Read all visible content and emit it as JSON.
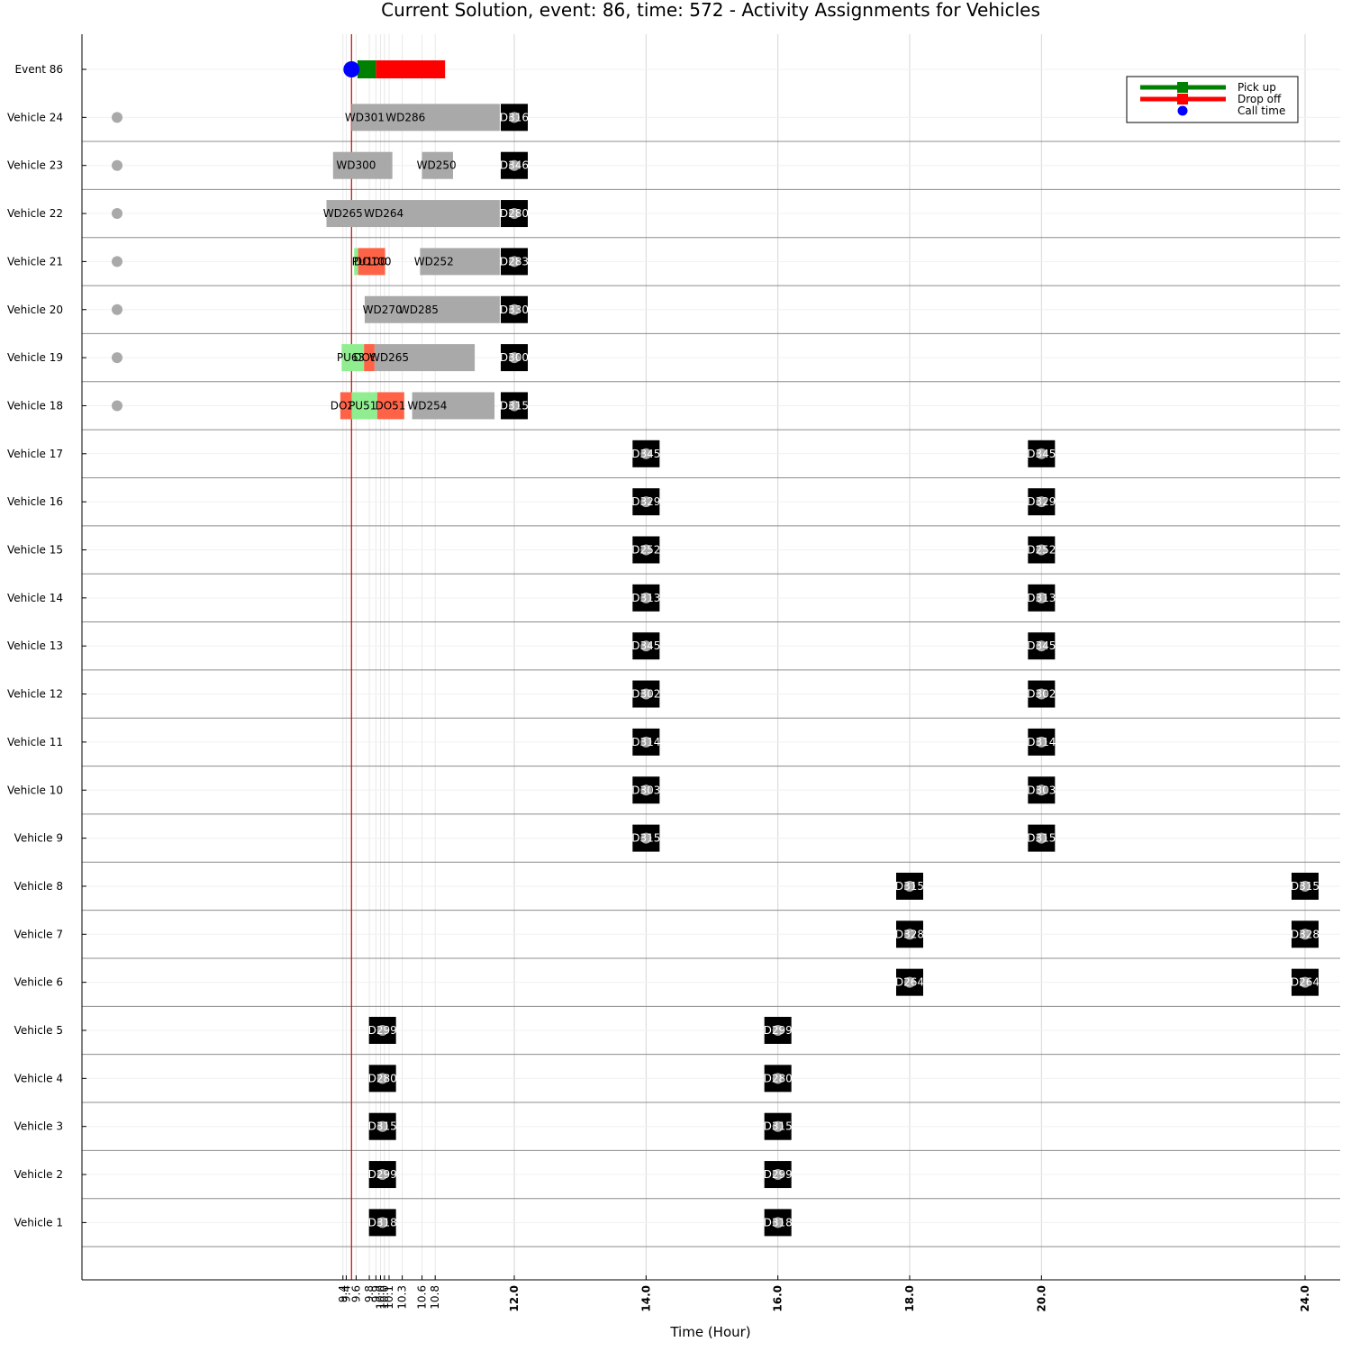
{
  "chart_data": {
    "type": "gantt",
    "title": "Current Solution, event: 86, time: 572 - Activity Assignments for Vehicles",
    "xlabel": "Time (Hour)",
    "xlim": [
      6.7,
      24.6
    ],
    "xticks": [
      "9.4",
      "9.4",
      "9.6",
      "9.8",
      "9.9",
      "10.0",
      "10.0",
      "10.1",
      "10.3",
      "10.6",
      "10.8",
      "12.0",
      "14.0",
      "16.0",
      "18.0",
      "20.0",
      "24.0"
    ],
    "xtick_values": [
      9.4,
      9.45,
      9.6,
      9.8,
      9.9,
      9.97,
      10.03,
      10.1,
      10.3,
      10.6,
      10.8,
      12.0,
      14.0,
      16.0,
      18.0,
      20.0,
      24.0
    ],
    "current_time": 9.53,
    "colors": {
      "pickup": "#008000",
      "dropoff": "#ff0000",
      "call": "#0000ff",
      "pu_bar": "#90ee90",
      "do_bar": "#ff6347",
      "wd_bar": "#a9a9a9",
      "depot": "#000000",
      "now_line": "#cc0000"
    },
    "legend": {
      "position": "top-right",
      "entries": [
        {
          "label": "Pick up",
          "color": "#008000",
          "kind": "line-square"
        },
        {
          "label": "Drop off",
          "color": "#ff0000",
          "kind": "line-square"
        },
        {
          "label": "Call time",
          "color": "#0000ff",
          "kind": "dot"
        }
      ]
    },
    "rows": [
      {
        "label": "Event 86",
        "call_time": 9.53,
        "pickup": [
          9.62,
          9.9
        ],
        "dropoff": [
          9.9,
          10.95
        ]
      },
      {
        "label": "Vehicle 24",
        "bars": [
          {
            "start": 9.53,
            "end": 11.78,
            "kind": "wd",
            "labels": [
              "WD301",
              "WD286"
            ],
            "label_x": [
              9.73,
              10.35
            ]
          },
          {
            "start": 11.78,
            "end": 12.2,
            "kind": "depot",
            "labels": [
              "D316"
            ],
            "label_x": [
              12.0
            ]
          }
        ]
      },
      {
        "label": "Vehicle 23",
        "bars": [
          {
            "start": 9.25,
            "end": 10.15,
            "kind": "wd",
            "labels": [
              "WD300"
            ],
            "label_x": [
              9.6
            ]
          },
          {
            "start": 10.6,
            "end": 11.07,
            "kind": "wd",
            "labels": [
              "WD250"
            ],
            "label_x": [
              10.82
            ]
          },
          {
            "start": 11.78,
            "end": 12.2,
            "kind": "depot",
            "labels": [
              "D346"
            ],
            "label_x": [
              12.0
            ]
          }
        ]
      },
      {
        "label": "Vehicle 22",
        "bars": [
          {
            "start": 9.15,
            "end": 11.78,
            "kind": "wd",
            "labels": [
              "WD265",
              "WD264"
            ],
            "label_x": [
              9.4,
              10.02
            ]
          },
          {
            "start": 11.78,
            "end": 12.2,
            "kind": "depot",
            "labels": [
              "D280"
            ],
            "label_x": [
              12.0
            ]
          }
        ]
      },
      {
        "label": "Vehicle 21",
        "bars": [
          {
            "start": 9.57,
            "end": 9.63,
            "kind": "pu",
            "labels": [],
            "label_x": []
          },
          {
            "start": 9.63,
            "end": 10.04,
            "kind": "do",
            "labels": [
              "PU100",
              "DO100"
            ],
            "label_x": [
              9.8,
              9.85
            ]
          },
          {
            "start": 10.57,
            "end": 11.78,
            "kind": "wd",
            "labels": [
              "WD252"
            ],
            "label_x": [
              10.78
            ]
          },
          {
            "start": 11.78,
            "end": 12.2,
            "kind": "depot",
            "labels": [
              "D283"
            ],
            "label_x": [
              12.0
            ]
          }
        ]
      },
      {
        "label": "Vehicle 20",
        "bars": [
          {
            "start": 9.73,
            "end": 11.78,
            "kind": "wd",
            "labels": [
              "WD270",
              "WD285"
            ],
            "label_x": [
              10.0,
              10.55
            ]
          },
          {
            "start": 11.78,
            "end": 12.2,
            "kind": "depot",
            "labels": [
              "D330"
            ],
            "label_x": [
              12.0
            ]
          }
        ]
      },
      {
        "label": "Vehicle 19",
        "bars": [
          {
            "start": 9.38,
            "end": 9.72,
            "kind": "pu",
            "labels": [
              "PU63"
            ],
            "label_x": [
              9.52
            ]
          },
          {
            "start": 9.72,
            "end": 9.88,
            "kind": "do",
            "labels": [
              "DO63"
            ],
            "label_x": [
              9.79
            ]
          },
          {
            "start": 9.88,
            "end": 11.4,
            "kind": "wd",
            "labels": [
              "WD265"
            ],
            "label_x": [
              10.1
            ]
          },
          {
            "start": 11.78,
            "end": 12.2,
            "kind": "depot",
            "labels": [
              "D300"
            ],
            "label_x": [
              12.0
            ]
          }
        ]
      },
      {
        "label": "Vehicle 18",
        "bars": [
          {
            "start": 9.36,
            "end": 9.53,
            "kind": "do",
            "labels": [
              "DO25"
            ],
            "label_x": [
              9.44
            ]
          },
          {
            "start": 9.53,
            "end": 9.92,
            "kind": "pu",
            "labels": [
              "PU51"
            ],
            "label_x": [
              9.7
            ]
          },
          {
            "start": 9.92,
            "end": 10.33,
            "kind": "do",
            "labels": [
              "DO51"
            ],
            "label_x": [
              10.12
            ]
          },
          {
            "start": 10.45,
            "end": 11.7,
            "kind": "wd",
            "labels": [
              "WD254"
            ],
            "label_x": [
              10.68
            ]
          },
          {
            "start": 11.78,
            "end": 12.2,
            "kind": "depot",
            "labels": [
              "D315"
            ],
            "label_x": [
              12.0
            ]
          }
        ]
      },
      {
        "label": "Vehicle 17",
        "depots": [
          {
            "x": 14.0,
            "label": "D345"
          },
          {
            "x": 20.0,
            "label": "D345"
          }
        ]
      },
      {
        "label": "Vehicle 16",
        "depots": [
          {
            "x": 14.0,
            "label": "D329"
          },
          {
            "x": 20.0,
            "label": "D329"
          }
        ]
      },
      {
        "label": "Vehicle 15",
        "depots": [
          {
            "x": 14.0,
            "label": "D252"
          },
          {
            "x": 20.0,
            "label": "D252"
          }
        ]
      },
      {
        "label": "Vehicle 14",
        "depots": [
          {
            "x": 14.0,
            "label": "D313"
          },
          {
            "x": 20.0,
            "label": "D313"
          }
        ]
      },
      {
        "label": "Vehicle 13",
        "depots": [
          {
            "x": 14.0,
            "label": "D345"
          },
          {
            "x": 20.0,
            "label": "D345"
          }
        ]
      },
      {
        "label": "Vehicle 12",
        "depots": [
          {
            "x": 14.0,
            "label": "D302"
          },
          {
            "x": 20.0,
            "label": "D302"
          }
        ]
      },
      {
        "label": "Vehicle 11",
        "depots": [
          {
            "x": 14.0,
            "label": "D314"
          },
          {
            "x": 20.0,
            "label": "D314"
          }
        ]
      },
      {
        "label": "Vehicle 10",
        "depots": [
          {
            "x": 14.0,
            "label": "D303"
          },
          {
            "x": 20.0,
            "label": "D303"
          }
        ]
      },
      {
        "label": "Vehicle 9",
        "depots": [
          {
            "x": 14.0,
            "label": "D315"
          },
          {
            "x": 20.0,
            "label": "D315"
          }
        ]
      },
      {
        "label": "Vehicle 8",
        "depots": [
          {
            "x": 18.0,
            "label": "D315"
          },
          {
            "x": 24.0,
            "label": "D315"
          }
        ]
      },
      {
        "label": "Vehicle 7",
        "depots": [
          {
            "x": 18.0,
            "label": "D328"
          },
          {
            "x": 24.0,
            "label": "D328"
          }
        ]
      },
      {
        "label": "Vehicle 6",
        "depots": [
          {
            "x": 18.0,
            "label": "D264"
          },
          {
            "x": 24.0,
            "label": "D264"
          }
        ]
      },
      {
        "label": "Vehicle 5",
        "depots": [
          {
            "x": 10.0,
            "label": "D299"
          },
          {
            "x": 16.0,
            "label": "D299"
          }
        ]
      },
      {
        "label": "Vehicle 4",
        "depots": [
          {
            "x": 10.0,
            "label": "D280"
          },
          {
            "x": 16.0,
            "label": "D280"
          }
        ]
      },
      {
        "label": "Vehicle 3",
        "depots": [
          {
            "x": 10.0,
            "label": "D315"
          },
          {
            "x": 16.0,
            "label": "D315"
          }
        ]
      },
      {
        "label": "Vehicle 2",
        "depots": [
          {
            "x": 10.0,
            "label": "D299"
          },
          {
            "x": 16.0,
            "label": "D299"
          }
        ]
      },
      {
        "label": "Vehicle 1",
        "depots": [
          {
            "x": 10.0,
            "label": "D318"
          },
          {
            "x": 16.0,
            "label": "D318"
          }
        ]
      }
    ],
    "idle_marker_x": 7.2,
    "idle_marker_rows": [
      "Vehicle 24",
      "Vehicle 23",
      "Vehicle 22",
      "Vehicle 21",
      "Vehicle 20",
      "Vehicle 19",
      "Vehicle 18"
    ]
  }
}
